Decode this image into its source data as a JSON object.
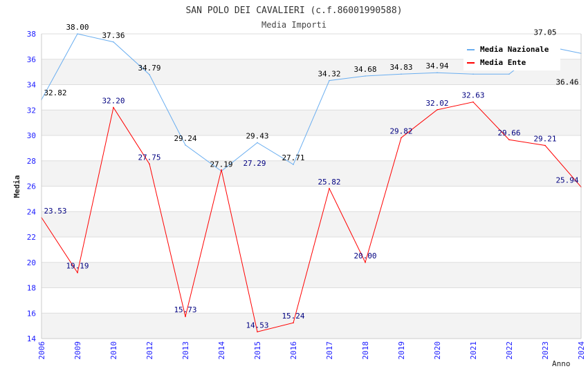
{
  "chart_data": {
    "type": "line",
    "title": "SAN POLO DEI CAVALIERI (c.f.86001990588)",
    "subtitle": "Media Importi",
    "xlabel": "Anno",
    "ylabel": "Media",
    "ylim": [
      14,
      38
    ],
    "yticks": [
      14,
      16,
      18,
      20,
      22,
      24,
      26,
      28,
      30,
      32,
      34,
      36,
      38
    ],
    "categories": [
      "2006",
      "2009",
      "2010",
      "2012",
      "2013",
      "2014",
      "2015",
      "2016",
      "2017",
      "2018",
      "2019",
      "2020",
      "2021",
      "2022",
      "2023",
      "2024"
    ],
    "series": [
      {
        "name": "Media Nazionale",
        "color": "#6aaef0",
        "label_color": "#000000",
        "values": [
          32.82,
          38.0,
          37.36,
          34.79,
          29.24,
          27.19,
          29.43,
          27.71,
          34.32,
          34.68,
          34.83,
          34.94,
          34.83,
          34.83,
          37.05,
          36.46
        ],
        "labels": [
          "32.82",
          "38.00",
          "37.36",
          "34.79",
          "29.24",
          "27.19",
          "29.43",
          "27.71",
          "34.32",
          "34.68",
          "34.83",
          "34.94",
          "",
          "",
          "37.05",
          "36.46"
        ]
      },
      {
        "name": "Media Ente",
        "color": "#ff0000",
        "label_color": "#000080",
        "values": [
          23.53,
          19.19,
          32.2,
          27.75,
          15.73,
          27.29,
          14.53,
          15.24,
          25.82,
          20.0,
          29.82,
          32.02,
          32.63,
          29.66,
          29.21,
          25.94
        ],
        "labels": [
          "23.53",
          "19.19",
          "32.20",
          "27.75",
          "15.73",
          "27.29",
          "14.53",
          "15.24",
          "25.82",
          "20.00",
          "29.82",
          "32.02",
          "32.63",
          "29.66",
          "29.21",
          "25.94"
        ]
      }
    ],
    "legend": "top-right",
    "grid": true
  }
}
